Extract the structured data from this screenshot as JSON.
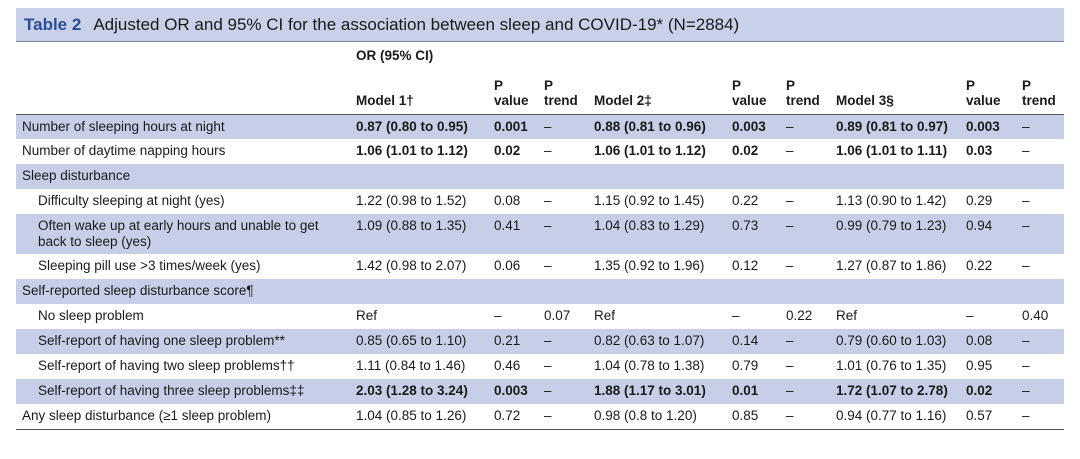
{
  "header": {
    "label": "Table 2",
    "title": "Adjusted OR and 95% CI for the association between sleep and COVID-19* (N=2884)"
  },
  "table": {
    "group_heading": "OR (95% CI)",
    "columns": [
      "Model 1†",
      "P value",
      "P trend",
      "Model 2‡",
      "P value",
      "P trend",
      "Model 3§",
      "P value",
      "P trend"
    ],
    "rows": [
      {
        "label": "Number of sleeping hours at night",
        "bold": true,
        "cells": [
          "0.87 (0.80 to 0.95)",
          "0.001",
          "–",
          "0.88 (0.81 to 0.96)",
          "0.003",
          "–",
          "0.89 (0.81 to 0.97)",
          "0.003",
          "–"
        ]
      },
      {
        "label": "Number of daytime napping hours",
        "bold": true,
        "cells": [
          "1.06 (1.01 to 1.12)",
          "0.02",
          "–",
          "1.06 (1.01 to 1.12)",
          "0.02",
          "–",
          "1.06 (1.01 to 1.11)",
          "0.03",
          "–"
        ]
      },
      {
        "label": "Sleep disturbance"
      },
      {
        "label": "Difficulty sleeping at night (yes)",
        "indent": true,
        "cells": [
          "1.22 (0.98 to 1.52)",
          "0.08",
          "–",
          "1.15 (0.92 to 1.45)",
          "0.22",
          "–",
          "1.13 (0.90 to 1.42)",
          "0.29",
          "–"
        ]
      },
      {
        "label": "Often wake up at early hours and unable to get back to sleep (yes)",
        "indent": true,
        "cells": [
          "1.09 (0.88 to 1.35)",
          "0.41",
          "–",
          "1.04 (0.83 to 1.29)",
          "0.73",
          "–",
          "0.99 (0.79 to 1.23)",
          "0.94",
          "–"
        ]
      },
      {
        "label": "Sleeping pill use >3 times/week (yes)",
        "indent": true,
        "cells": [
          "1.42 (0.98 to 2.07)",
          "0.06",
          "–",
          "1.35 (0.92 to 1.96)",
          "0.12",
          "–",
          "1.27 (0.87 to 1.86)",
          "0.22",
          "–"
        ]
      },
      {
        "label": "Self-reported sleep disturbance score¶"
      },
      {
        "label": "No sleep problem",
        "indent": true,
        "cells": [
          "Ref",
          "–",
          "0.07",
          "Ref",
          "–",
          "0.22",
          "Ref",
          "–",
          "0.40"
        ]
      },
      {
        "label": "Self-report of having one sleep problem**",
        "indent": true,
        "cells": [
          "0.85 (0.65 to 1.10)",
          "0.21",
          "–",
          "0.82 (0.63 to 1.07)",
          "0.14",
          "–",
          "0.79 (0.60 to 1.03)",
          "0.08",
          "–"
        ]
      },
      {
        "label": "Self-report of having two sleep problems††",
        "indent": true,
        "cells": [
          "1.11 (0.84 to 1.46)",
          "0.46",
          "–",
          "1.04 (0.78 to 1.38)",
          "0.79",
          "–",
          "1.01 (0.76 to 1.35)",
          "0.95",
          "–"
        ]
      },
      {
        "label": "Self-report of having three sleep problems‡‡",
        "indent": true,
        "bold": true,
        "cells": [
          "2.03 (1.28 to 3.24)",
          "0.003",
          "–",
          "1.88 (1.17 to 3.01)",
          "0.01",
          "–",
          "1.72 (1.07 to 2.78)",
          "0.02",
          "–"
        ]
      },
      {
        "label": "Any sleep disturbance (≥1 sleep problem)",
        "cells": [
          "1.04 (0.85 to 1.26)",
          "0.72",
          "–",
          "0.98 (0.8 to 1.20)",
          "0.85",
          "–",
          "0.94 (0.77 to 1.16)",
          "0.57",
          "–"
        ]
      }
    ]
  }
}
